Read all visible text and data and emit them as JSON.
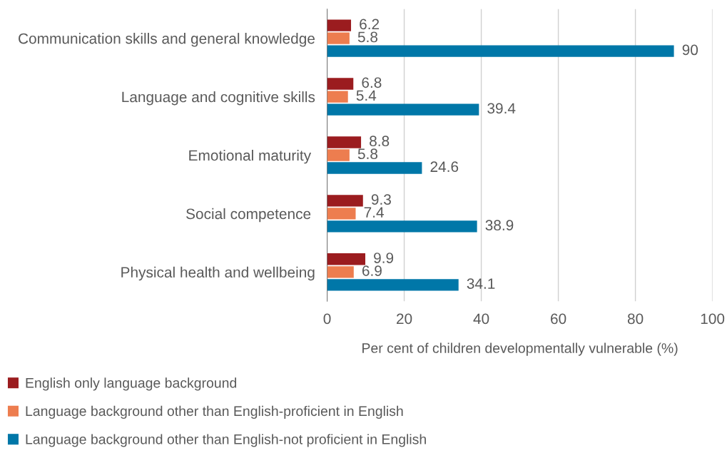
{
  "chart_data": {
    "type": "bar",
    "orientation": "horizontal",
    "categories": [
      "Communication skills and general knowledge",
      "Language and cognitive skills",
      "Emotional maturity ",
      "Social competence ",
      "Physical health and wellbeing"
    ],
    "series": [
      {
        "name": "English only language background",
        "color": "#9b1c1f",
        "values": [
          6.2,
          6.8,
          8.8,
          9.3,
          9.9
        ]
      },
      {
        "name": "Language background other than English-proficient in English",
        "color": "#ed7d4f",
        "values": [
          5.8,
          5.4,
          5.8,
          7.4,
          6.9
        ]
      },
      {
        "name": "Language background other than English-not proficient in English",
        "color": "#0077a8",
        "values": [
          90,
          39.4,
          24.6,
          38.9,
          34.1
        ]
      }
    ],
    "xlabel": "Per cent of children developmentally vulnerable (%)",
    "xlim": [
      0,
      100
    ],
    "xticks": [
      0,
      20,
      40,
      60,
      80,
      100
    ],
    "grid": "x",
    "legend": "bottom left",
    "data_labels": true
  }
}
